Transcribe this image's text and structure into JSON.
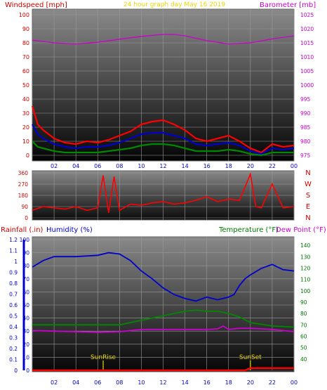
{
  "header": {
    "left_label": "Windspeed [mph]",
    "title": "24 hour graph day   May 16 2019",
    "right_label": "Barometer [mb]"
  },
  "colors": {
    "wind_axis": "#cc0000",
    "baro_axis": "#cc00cc",
    "title": "#e8d800",
    "rain": "#cc0000",
    "humidity": "#0000cc",
    "temperature": "#007700",
    "dewpoint": "#cc00cc",
    "sun_label": "#e8d800"
  },
  "chart_data": [
    {
      "type": "line",
      "name": "wind-barometer",
      "x_ticks": [
        "02",
        "04",
        "06",
        "08",
        "10",
        "12",
        "14",
        "16",
        "18",
        "20",
        "22",
        "00"
      ],
      "left_axis": {
        "label": "Windspeed [mph]",
        "range": [
          0,
          100
        ],
        "ticks": [
          "0",
          "10",
          "20",
          "30",
          "40",
          "50",
          "60",
          "70",
          "80",
          "90",
          "100"
        ]
      },
      "right_axis": {
        "label": "Barometer [mb]",
        "range": [
          975,
          1025
        ],
        "ticks": [
          "975",
          "980",
          "985",
          "990",
          "995",
          "1000",
          "1005",
          "1010",
          "1015",
          "1020",
          "1025"
        ]
      },
      "x_range_hours": [
        0,
        24
      ],
      "series": [
        {
          "color": "#cc00cc",
          "axis": "right",
          "x": [
            0,
            2,
            4,
            6,
            8,
            10,
            12,
            13,
            14,
            16,
            18,
            20,
            22,
            24
          ],
          "y": [
            1016,
            1015,
            1014.6,
            1015.2,
            1016.3,
            1017.3,
            1018,
            1018,
            1017.5,
            1015.8,
            1014.6,
            1015,
            1016.4,
            1017.5
          ]
        },
        {
          "color": "#ff0000",
          "axis": "left",
          "x": [
            0,
            0.5,
            1,
            2,
            3,
            4,
            5,
            6,
            7,
            8,
            9,
            10,
            11,
            12,
            13,
            14,
            15,
            16,
            17,
            18,
            19,
            20,
            21,
            22,
            23,
            24
          ],
          "y": [
            35,
            22,
            18,
            12,
            9,
            8,
            10,
            9,
            11,
            14,
            17,
            22,
            24,
            25,
            22,
            18,
            12,
            10,
            12,
            14,
            10,
            5,
            2,
            8,
            6,
            7
          ]
        },
        {
          "color": "#0000cc",
          "axis": "left",
          "x": [
            0,
            0.5,
            1,
            2,
            3,
            4,
            5,
            6,
            7,
            8,
            9,
            10,
            11,
            12,
            13,
            14,
            15,
            16,
            17,
            18,
            19,
            20,
            21,
            22,
            23,
            24
          ],
          "y": [
            22,
            15,
            12,
            8,
            6,
            5,
            6,
            6,
            7,
            9,
            12,
            15,
            16,
            16,
            14,
            12,
            8,
            7,
            8,
            9,
            7,
            3,
            1,
            5,
            4,
            5
          ]
        },
        {
          "color": "#008800",
          "axis": "left",
          "x": [
            0,
            0.5,
            1,
            2,
            3,
            4,
            5,
            6,
            7,
            8,
            9,
            10,
            11,
            12,
            13,
            14,
            15,
            16,
            17,
            18,
            19,
            20,
            21,
            22,
            23,
            24
          ],
          "y": [
            10,
            6,
            5,
            3,
            2,
            2,
            2,
            2,
            3,
            4,
            5,
            7,
            8,
            8,
            7,
            5,
            3,
            3,
            3,
            4,
            3,
            1,
            0,
            2,
            2,
            2
          ]
        }
      ]
    },
    {
      "type": "scatter",
      "name": "wind-direction",
      "x_ticks": [
        "02",
        "04",
        "06",
        "08",
        "10",
        "12",
        "14",
        "16",
        "18",
        "20",
        "22",
        "00"
      ],
      "left_axis": {
        "range": [
          0,
          360
        ],
        "ticks": [
          "0",
          "90",
          "180",
          "270",
          "360"
        ]
      },
      "compass": [
        "N",
        "W",
        "S",
        "E",
        "N"
      ],
      "x_range_hours": [
        0,
        24
      ],
      "series": [
        {
          "color": "#ff0000",
          "x": [
            0,
            1,
            2,
            3,
            4,
            5,
            6,
            6.5,
            7,
            7.5,
            8,
            9,
            10,
            11,
            12,
            13,
            14,
            15,
            16,
            17,
            18,
            19,
            20,
            20.5,
            21,
            22,
            23,
            24
          ],
          "y": [
            60,
            90,
            80,
            70,
            90,
            60,
            80,
            340,
            40,
            330,
            60,
            110,
            100,
            120,
            130,
            110,
            120,
            140,
            170,
            130,
            150,
            140,
            350,
            90,
            80,
            270,
            80,
            90
          ]
        }
      ]
    },
    {
      "type": "line",
      "name": "rain-humidity-temperature",
      "x_ticks": [
        "02",
        "04",
        "06",
        "08",
        "10",
        "12",
        "14",
        "16",
        "18",
        "20",
        "22",
        "00"
      ],
      "rain_axis": {
        "label": "Rainfall (.in)",
        "range": [
          0,
          1.2
        ],
        "ticks": [
          "0",
          "0.1",
          "0.2",
          "0.3",
          "0.4",
          "0.5",
          "0.6",
          "0.7",
          "0.8",
          "0.9",
          "1",
          "1.1",
          "1.2"
        ]
      },
      "humidity_axis": {
        "label": "Humidity (%)",
        "range": [
          0,
          100
        ],
        "ticks": [
          "0",
          "10",
          "20",
          "30",
          "40",
          "50",
          "60",
          "70",
          "80",
          "90",
          "100"
        ]
      },
      "temperature_axis": {
        "label": "Temperature (°F)",
        "range": [
          30,
          145
        ],
        "ticks": [
          "40",
          "50",
          "60",
          "70",
          "80",
          "90",
          "100",
          "110",
          "120",
          "130",
          "140"
        ]
      },
      "dewpoint_label": "Dew Point (°F)",
      "annotations": [
        {
          "text": "SunRise",
          "x": 6.5
        },
        {
          "text": "SunSet",
          "x": 20
        }
      ],
      "x_range_hours": [
        0,
        24
      ],
      "series": [
        {
          "color": "#0000cc",
          "axis": "humidity",
          "x": [
            0,
            1,
            2,
            4,
            6,
            7,
            8,
            9,
            10,
            11,
            12,
            13,
            14,
            15,
            16,
            17,
            18,
            18.5,
            19,
            19.5,
            20,
            21,
            22,
            23,
            24
          ],
          "y": [
            79,
            84,
            87,
            87,
            88,
            90,
            89,
            84,
            76,
            70,
            63,
            58,
            55,
            53,
            56,
            54,
            56,
            58,
            65,
            70,
            73,
            78,
            81,
            77,
            76
          ]
        },
        {
          "color": "#008800",
          "axis": "temperature",
          "x": [
            0,
            1,
            2,
            4,
            6,
            8,
            10,
            12,
            14,
            15,
            16,
            17,
            18,
            19,
            20,
            22,
            24
          ],
          "y": [
            70,
            70,
            70,
            70,
            70,
            70,
            74,
            78,
            82,
            83,
            82,
            82,
            80,
            77,
            72,
            69,
            68
          ]
        },
        {
          "color": "#cc00cc",
          "axis": "temperature",
          "x": [
            0,
            2,
            4,
            6,
            8,
            10,
            12,
            14,
            15,
            16,
            17,
            17.5,
            18,
            19,
            20,
            22,
            24
          ],
          "y": [
            65,
            64.5,
            64,
            63.5,
            64,
            66,
            66,
            66,
            66,
            66,
            66.5,
            69,
            66,
            67,
            67,
            66,
            64
          ]
        },
        {
          "color": "#ff0000",
          "axis": "rain",
          "x": [
            0,
            19.5,
            20,
            24
          ],
          "y": [
            0,
            0,
            0.02,
            0.02
          ]
        }
      ]
    }
  ]
}
